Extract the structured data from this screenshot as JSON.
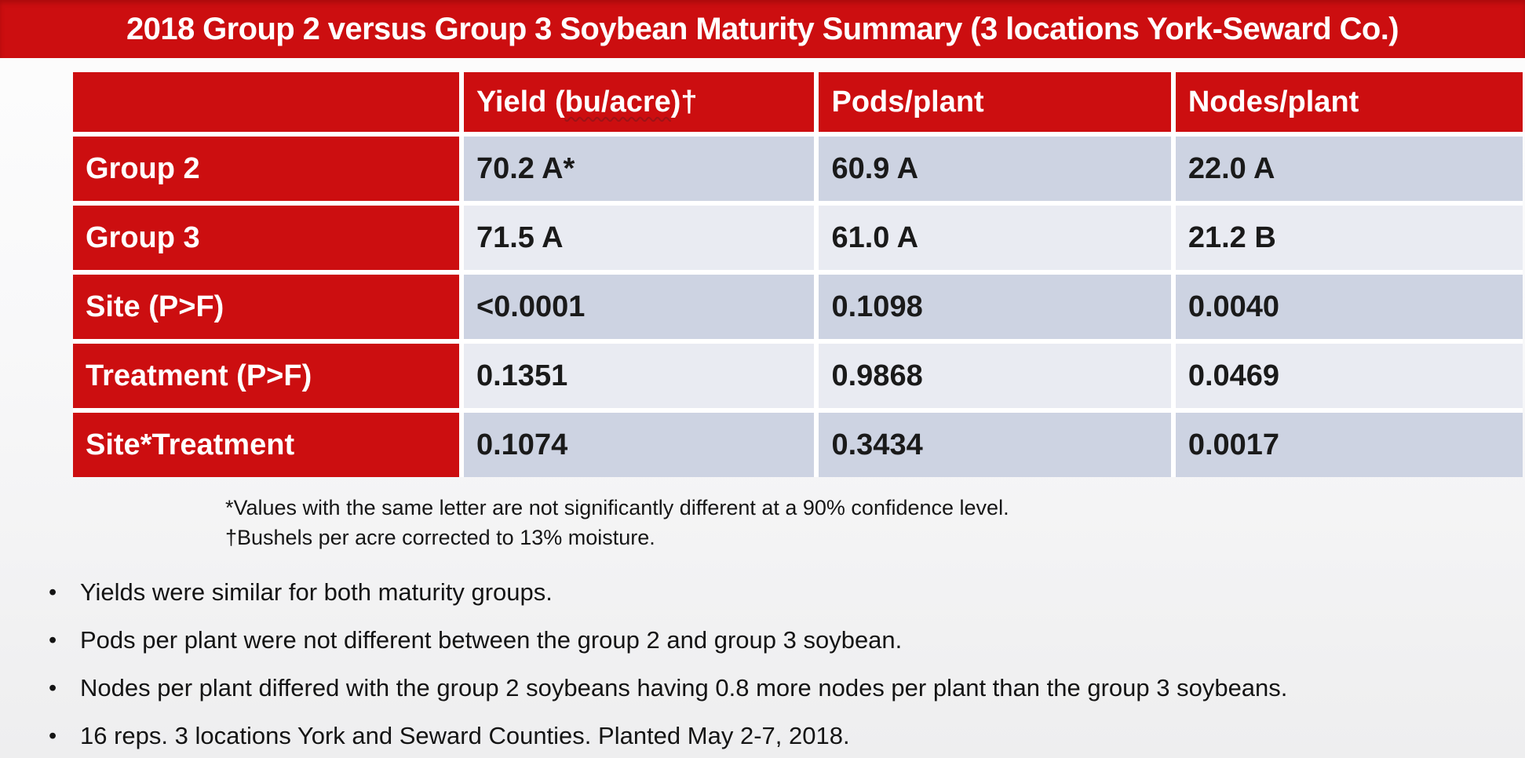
{
  "title": "2018 Group 2 versus Group 3 Soybean Maturity Summary (3 locations York-Seward Co.)",
  "colors": {
    "accent_red": "#cc0e10",
    "band_dark": "#cdd3e2",
    "band_light": "#e9ebf2",
    "title_text": "#ffffff",
    "body_text": "#1a1a1a"
  },
  "table": {
    "headers": {
      "row_label": "",
      "yield_pre": "Yield (",
      "yield_flagged": "bu/acre",
      "yield_post": ")†",
      "pods": "Pods/plant",
      "nodes": "Nodes/plant"
    },
    "rows": [
      {
        "label": "Group 2",
        "values": [
          "70.2 A*",
          "60.9 A",
          "22.0 A"
        ]
      },
      {
        "label": "Group 3",
        "values": [
          "71.5 A",
          "61.0 A",
          "21.2 B"
        ]
      },
      {
        "label": "Site (P>F)",
        "values": [
          "<0.0001",
          "0.1098",
          "0.0040"
        ]
      },
      {
        "label": "Treatment (P>F)",
        "values": [
          "0.1351",
          "0.9868",
          "0.0469"
        ]
      },
      {
        "label": "Site*Treatment",
        "values": [
          "0.1074",
          "0.3434",
          "0.0017"
        ]
      }
    ]
  },
  "footnotes": [
    "*Values with the same letter are not significantly different at a 90% confidence level.",
    "†Bushels per acre corrected to 13% moisture."
  ],
  "bullets": [
    "Yields were similar for both maturity groups.",
    "Pods per plant were not different between the group 2 and group 3 soybean.",
    "Nodes per plant differed with the group 2 soybeans having 0.8 more nodes per plant than the group 3 soybeans.",
    "16 reps. 3 locations York and Seward Counties. Planted May 2-7, 2018."
  ]
}
